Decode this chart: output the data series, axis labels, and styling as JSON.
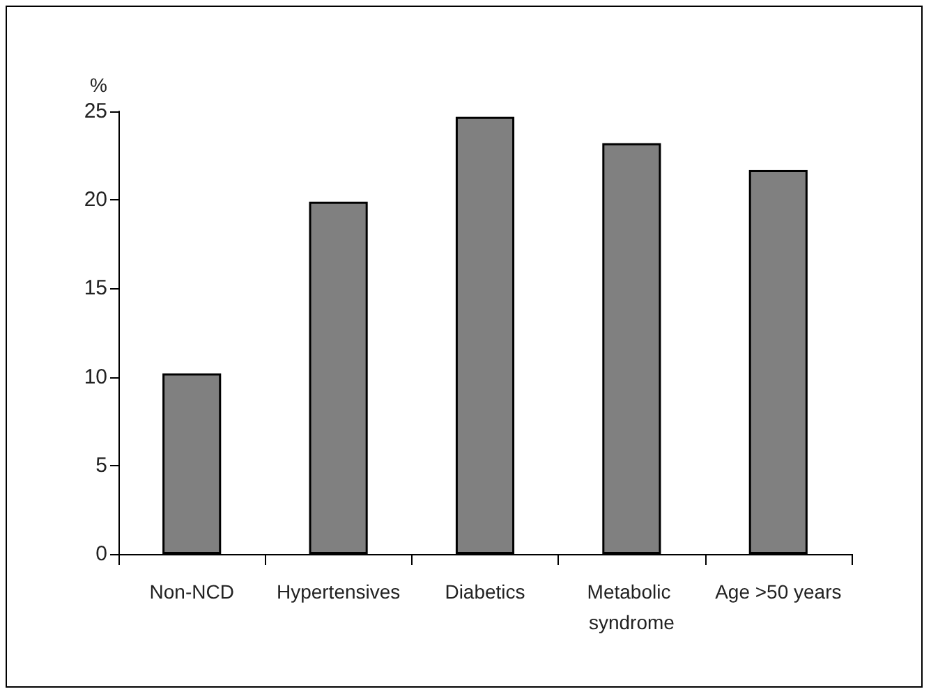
{
  "chart_data": {
    "type": "bar",
    "ylabel": "%",
    "categories": [
      "Non-NCD",
      "Hypertensives",
      "Diabetics",
      "Metabolic syndrome",
      "Age >50 years"
    ],
    "values": [
      10.2,
      19.9,
      24.7,
      23.2,
      21.7
    ],
    "color": "#808080",
    "ylim": [
      0,
      25
    ],
    "yticks": [
      0,
      5,
      10,
      15,
      20,
      25
    ]
  }
}
